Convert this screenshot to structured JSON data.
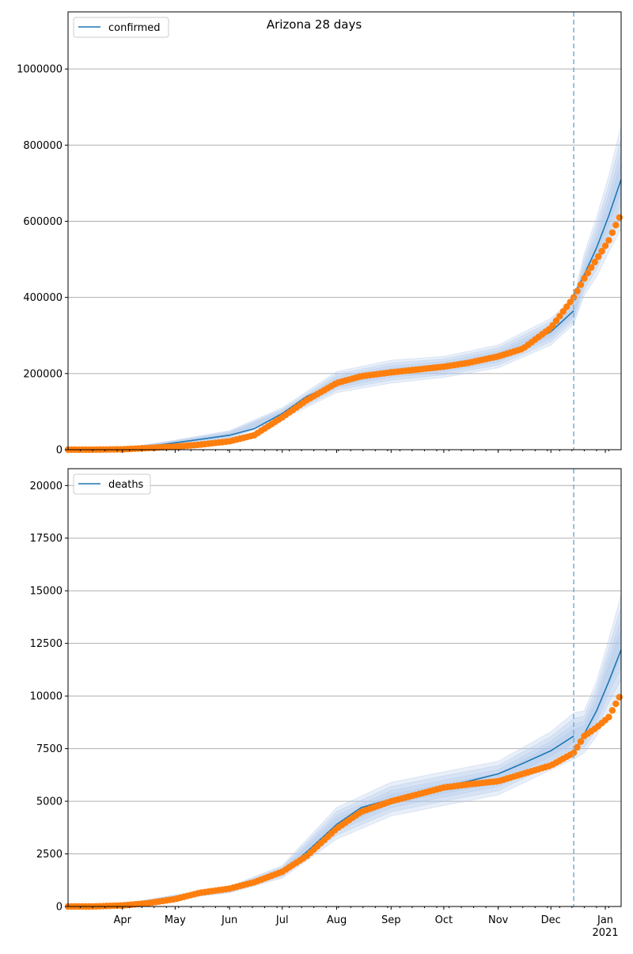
{
  "title": "Arizona 28 days",
  "colors": {
    "model": "#1f77b4",
    "observed": "#ff7f0e",
    "band": "#aec7e8",
    "marker_line": "#7fb2d2",
    "grid": "#b0b0b0"
  },
  "chart_data": [
    {
      "type": "line",
      "name": "confirmed-panel",
      "legend": {
        "label": "confirmed",
        "placement": "top-left"
      },
      "xlim": [
        "2020-03-01",
        "2021-01-10"
      ],
      "ylim": [
        0,
        1150000
      ],
      "yticks": [
        0,
        200000,
        400000,
        600000,
        800000,
        1000000
      ],
      "ytick_labels": [
        "0",
        "200000",
        "400000",
        "600000",
        "800000",
        "1000000"
      ],
      "grid": "y",
      "vline_date": "2020-12-14",
      "model": {
        "x": [
          "2020-03-01",
          "2020-03-15",
          "2020-04-01",
          "2020-04-15",
          "2020-05-01",
          "2020-05-15",
          "2020-06-01",
          "2020-06-15",
          "2020-07-01",
          "2020-07-15",
          "2020-08-01",
          "2020-08-15",
          "2020-09-01",
          "2020-09-15",
          "2020-10-01",
          "2020-10-15",
          "2020-11-01",
          "2020-11-15",
          "2020-12-01",
          "2020-12-14"
        ],
        "y": [
          0,
          1000,
          3000,
          8000,
          18000,
          27000,
          38000,
          55000,
          95000,
          140000,
          175000,
          195000,
          205000,
          212000,
          218000,
          228000,
          245000,
          270000,
          310000,
          365000
        ],
        "x_fwd": [
          "2020-12-14",
          "2020-12-20",
          "2020-12-27",
          "2021-01-03",
          "2021-01-10"
        ],
        "y_fwd": [
          405000,
          460000,
          530000,
          615000,
          710000
        ]
      },
      "band": {
        "x": [
          "2020-03-01",
          "2020-04-01",
          "2020-05-01",
          "2020-06-01",
          "2020-07-01",
          "2020-08-01",
          "2020-09-01",
          "2020-10-01",
          "2020-11-01",
          "2020-12-01",
          "2020-12-14",
          "2020-12-20",
          "2020-12-27",
          "2021-01-03",
          "2021-01-10"
        ],
        "lower": [
          0,
          2000,
          12000,
          28000,
          80000,
          150000,
          175000,
          190000,
          215000,
          275000,
          330000,
          405000,
          455000,
          520000,
          580000
        ],
        "upper": [
          0,
          4000,
          25000,
          50000,
          110000,
          205000,
          235000,
          245000,
          275000,
          345000,
          400000,
          515000,
          610000,
          720000,
          850000
        ]
      },
      "observed": {
        "x": [
          "2020-03-01",
          "2020-03-15",
          "2020-04-01",
          "2020-04-15",
          "2020-05-01",
          "2020-05-15",
          "2020-06-01",
          "2020-06-15",
          "2020-07-01",
          "2020-07-15",
          "2020-08-01",
          "2020-08-15",
          "2020-09-01",
          "2020-09-15",
          "2020-10-01",
          "2020-10-15",
          "2020-11-01",
          "2020-11-15",
          "2020-12-01",
          "2020-12-14",
          "2020-12-20",
          "2020-12-27",
          "2021-01-03",
          "2021-01-10"
        ],
        "y": [
          0,
          0,
          1000,
          4000,
          8000,
          13000,
          22000,
          38000,
          85000,
          130000,
          175000,
          193000,
          203000,
          210000,
          218000,
          228000,
          245000,
          265000,
          320000,
          400000,
          450000,
          500000,
          550000,
          620000
        ]
      }
    },
    {
      "type": "line",
      "name": "deaths-panel",
      "legend": {
        "label": "deaths",
        "placement": "top-left"
      },
      "xlim": [
        "2020-03-01",
        "2021-01-10"
      ],
      "ylim": [
        0,
        20800
      ],
      "yticks": [
        0,
        2500,
        5000,
        7500,
        10000,
        12500,
        15000,
        17500,
        20000
      ],
      "ytick_labels": [
        "0",
        "2500",
        "5000",
        "7500",
        "10000",
        "12500",
        "15000",
        "17500",
        "20000"
      ],
      "xticks": [
        "2020-04-01",
        "2020-05-01",
        "2020-06-01",
        "2020-07-01",
        "2020-08-01",
        "2020-09-01",
        "2020-10-01",
        "2020-11-01",
        "2020-12-01",
        "2021-01-01"
      ],
      "xtick_labels": [
        "Apr",
        "May",
        "Jun",
        "Jul",
        "Aug",
        "Sep",
        "Oct",
        "Nov",
        "Dec",
        "Jan\n2021"
      ],
      "grid": "y",
      "vline_date": "2020-12-14",
      "model": {
        "x": [
          "2020-03-01",
          "2020-03-15",
          "2020-04-01",
          "2020-04-15",
          "2020-05-01",
          "2020-05-15",
          "2020-06-01",
          "2020-06-15",
          "2020-07-01",
          "2020-07-15",
          "2020-08-01",
          "2020-08-15",
          "2020-09-01",
          "2020-09-15",
          "2020-10-01",
          "2020-10-15",
          "2020-11-01",
          "2020-11-15",
          "2020-12-01",
          "2020-12-14"
        ],
        "y": [
          0,
          10,
          80,
          250,
          450,
          650,
          800,
          1100,
          1600,
          2600,
          3900,
          4700,
          5100,
          5400,
          5700,
          5950,
          6300,
          6800,
          7400,
          8100
        ],
        "x_fwd": [
          "2020-12-14",
          "2020-12-20",
          "2020-12-27",
          "2021-01-03",
          "2021-01-10"
        ],
        "y_fwd": [
          7300,
          8200,
          9300,
          10700,
          12200
        ]
      },
      "band": {
        "x": [
          "2020-03-01",
          "2020-04-01",
          "2020-05-01",
          "2020-06-01",
          "2020-07-01",
          "2020-08-01",
          "2020-09-01",
          "2020-10-01",
          "2020-11-01",
          "2020-12-01",
          "2020-12-14",
          "2020-12-20",
          "2020-12-27",
          "2021-01-03",
          "2021-01-10"
        ],
        "lower": [
          0,
          50,
          350,
          650,
          1350,
          3200,
          4300,
          4800,
          5300,
          6500,
          7000,
          7300,
          8100,
          9300,
          10200
        ],
        "upper": [
          0,
          120,
          550,
          950,
          1950,
          4700,
          5900,
          6400,
          6900,
          8300,
          9200,
          9300,
          10700,
          12700,
          14800
        ]
      },
      "observed": {
        "x": [
          "2020-03-01",
          "2020-03-15",
          "2020-04-01",
          "2020-04-15",
          "2020-05-01",
          "2020-05-15",
          "2020-06-01",
          "2020-06-15",
          "2020-07-01",
          "2020-07-15",
          "2020-08-01",
          "2020-08-15",
          "2020-09-01",
          "2020-09-15",
          "2020-10-01",
          "2020-10-15",
          "2020-11-01",
          "2020-11-15",
          "2020-12-01",
          "2020-12-14",
          "2020-12-20",
          "2020-12-27",
          "2021-01-03",
          "2021-01-10"
        ],
        "y": [
          0,
          0,
          50,
          150,
          350,
          650,
          850,
          1150,
          1650,
          2400,
          3700,
          4500,
          5000,
          5300,
          5650,
          5800,
          5950,
          6300,
          6700,
          7300,
          8100,
          8500,
          9000,
          10100
        ]
      }
    }
  ]
}
